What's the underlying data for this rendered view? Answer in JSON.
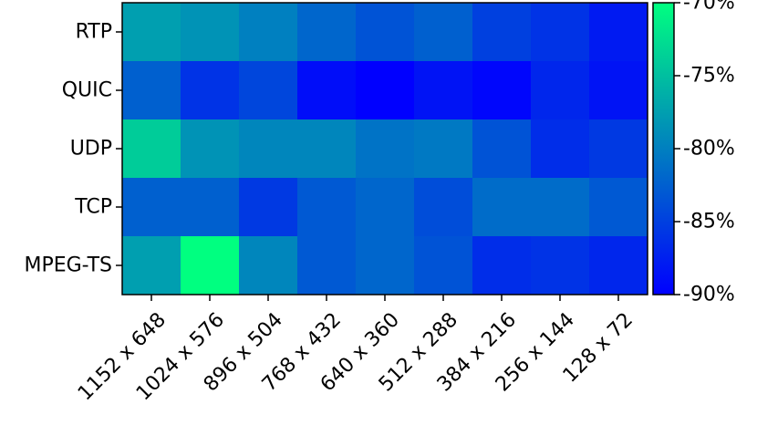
{
  "chart_data": {
    "type": "heatmap",
    "rows": [
      "RTP",
      "QUIC",
      "UDP",
      "TCP",
      "MPEG-TS"
    ],
    "columns": [
      "1152 x 648",
      "1024 x 576",
      "896 x 504",
      "768 x 432",
      "640 x 360",
      "512 x 288",
      "384 x 216",
      "256 x 144",
      "128 x 72"
    ],
    "values": [
      [
        -77.5,
        -78.5,
        -80.0,
        -82.0,
        -83.5,
        -82.5,
        -85.0,
        -86.0,
        -88.0
      ],
      [
        -82.5,
        -86.0,
        -84.5,
        -89.0,
        -90.0,
        -88.5,
        -89.5,
        -87.0,
        -88.5
      ],
      [
        -74.0,
        -78.5,
        -79.5,
        -79.5,
        -81.0,
        -80.5,
        -83.5,
        -86.5,
        -85.5
      ],
      [
        -82.5,
        -82.5,
        -85.5,
        -83.0,
        -82.0,
        -84.0,
        -81.5,
        -81.5,
        -83.0
      ],
      [
        -77.5,
        -70.0,
        -79.5,
        -83.0,
        -82.0,
        -83.5,
        -86.5,
        -86.0,
        -87.0
      ]
    ],
    "colorbar": {
      "min": -90,
      "max": -70,
      "ticks": [
        "-70%",
        "-75%",
        "-80%",
        "-85%",
        "-90%"
      ],
      "tick_values": [
        -70,
        -75,
        -80,
        -85,
        -90
      ],
      "colormap": "winter",
      "low_color": "#0000ff",
      "high_color": "#00ff80"
    },
    "title": "",
    "xlabel": "",
    "ylabel": ""
  }
}
